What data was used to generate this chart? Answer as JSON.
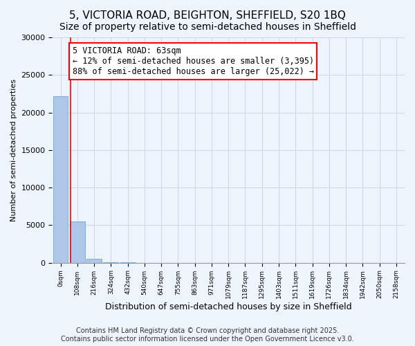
{
  "title_line1": "5, VICTORIA ROAD, BEIGHTON, SHEFFIELD, S20 1BQ",
  "title_line2": "Size of property relative to semi-detached houses in Sheffield",
  "xlabel": "Distribution of semi-detached houses by size in Sheffield",
  "ylabel": "Number of semi-detached properties",
  "footer": "Contains HM Land Registry data © Crown copyright and database right 2025.\nContains public sector information licensed under the Open Government Licence v3.0.",
  "bin_labels": [
    "0sqm",
    "108sqm",
    "216sqm",
    "324sqm",
    "432sqm",
    "540sqm",
    "647sqm",
    "755sqm",
    "863sqm",
    "971sqm",
    "1079sqm",
    "1187sqm",
    "1295sqm",
    "1403sqm",
    "1511sqm",
    "1619sqm",
    "1726sqm",
    "1834sqm",
    "1942sqm",
    "2050sqm",
    "2158sqm"
  ],
  "bar_values": [
    22200,
    5500,
    550,
    85,
    25,
    8,
    4,
    2,
    1,
    0,
    0,
    0,
    0,
    0,
    0,
    0,
    0,
    0,
    0,
    0,
    0
  ],
  "bar_color": "#aec6e8",
  "bar_edge_color": "#5a9fd4",
  "grid_color": "#c8d8e8",
  "background_color": "#eef4fb",
  "annotation_text": "5 VICTORIA ROAD: 63sqm\n← 12% of semi-detached houses are smaller (3,395)\n88% of semi-detached houses are larger (25,022) →",
  "annotation_box_color": "white",
  "annotation_box_edge_color": "red",
  "property_line_color": "red",
  "property_line_x": 0.583,
  "ylim": [
    0,
    30000
  ],
  "yticks": [
    0,
    5000,
    10000,
    15000,
    20000,
    25000,
    30000
  ],
  "title_fontsize": 11,
  "subtitle_fontsize": 10,
  "annotation_fontsize": 8.5,
  "ylabel_fontsize": 8,
  "xlabel_fontsize": 9,
  "footer_fontsize": 7
}
